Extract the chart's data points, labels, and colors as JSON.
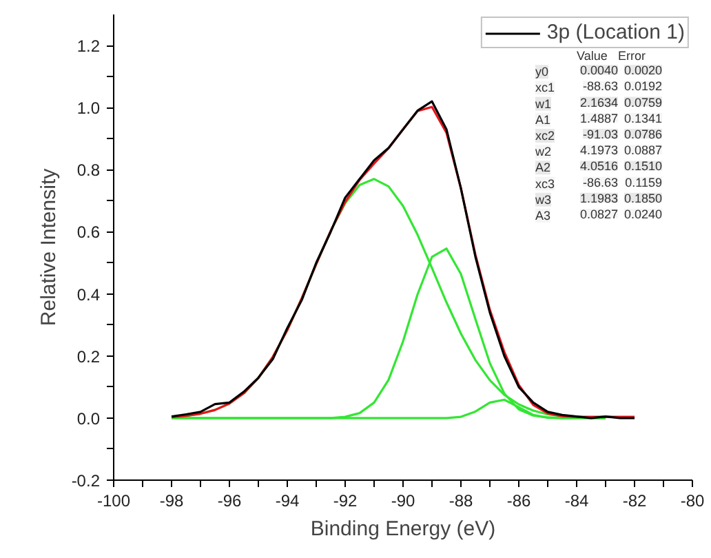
{
  "chart_data": {
    "type": "line",
    "xlabel": "Binding Energy (eV)",
    "ylabel": "Relative Intensity",
    "xlim": [
      -100,
      -80
    ],
    "ylim": [
      -0.2,
      1.3
    ],
    "xticks": [
      -100,
      {
        "value": -99,
        "label": null
      },
      -98,
      {
        "value": -97,
        "label": null
      },
      -96,
      {
        "value": -95,
        "label": null
      },
      -94,
      {
        "value": -93,
        "label": null
      },
      -92,
      {
        "value": -91,
        "label": null
      },
      -90,
      {
        "value": -89,
        "label": null
      },
      -88,
      {
        "value": -87,
        "label": null
      },
      -86,
      {
        "value": -85,
        "label": null
      },
      -84,
      {
        "value": -83,
        "label": null
      },
      -82,
      {
        "value": -81,
        "label": null
      },
      -80
    ],
    "yticks": [
      {
        "value": -0.2,
        "label": "-0.2"
      },
      {
        "value": -0.1,
        "label": null
      },
      {
        "value": 0,
        "label": "0.0"
      },
      {
        "value": 0.1,
        "label": null
      },
      {
        "value": 0.2,
        "label": "0.2"
      },
      {
        "value": 0.3,
        "label": null
      },
      {
        "value": 0.4,
        "label": "0.4"
      },
      {
        "value": 0.5,
        "label": null
      },
      {
        "value": 0.6,
        "label": "0.6"
      },
      {
        "value": 0.7,
        "label": null
      },
      {
        "value": 0.8,
        "label": "0.8"
      },
      {
        "value": 0.9,
        "label": null
      },
      {
        "value": 1.0,
        "label": "1.0"
      },
      {
        "value": 1.1,
        "label": null
      },
      {
        "value": 1.2,
        "label": "1.2"
      }
    ],
    "grid": false,
    "legend": "top right",
    "marker": "none",
    "line_style": "solid",
    "x": [
      -98,
      -97.5,
      -97,
      -96.5,
      -96,
      -95.5,
      -95,
      -94.5,
      -94,
      -93.5,
      -93,
      -92.5,
      -92,
      -91.5,
      -91,
      -90.5,
      -90,
      -89.5,
      -89,
      -88.5,
      -88,
      -87.5,
      -87,
      -86.5,
      -86,
      -85.5,
      -85,
      -84.5,
      -84,
      -83.5,
      -83,
      -82.5,
      -82
    ],
    "series": [
      {
        "name": "3p (Location 1)",
        "color": "#000000",
        "values": [
          0.005,
          0.012,
          0.02,
          0.045,
          0.05,
          0.085,
          0.13,
          0.19,
          0.29,
          0.38,
          0.5,
          0.6,
          0.71,
          0.77,
          0.83,
          0.87,
          0.93,
          0.99,
          1.02,
          0.93,
          0.74,
          0.52,
          0.34,
          0.2,
          0.1,
          0.05,
          0.02,
          0.01,
          0.005,
          0.0,
          0.005,
          0.0,
          0.0
        ]
      },
      {
        "color": "#e8141c",
        "values": [
          0.003,
          0.007,
          0.014,
          0.026,
          0.047,
          0.08,
          0.129,
          0.197,
          0.283,
          0.386,
          0.496,
          0.603,
          0.696,
          0.767,
          0.82,
          0.869,
          0.93,
          0.989,
          1.002,
          0.919,
          0.74,
          0.527,
          0.349,
          0.213,
          0.107,
          0.042,
          0.015,
          0.006,
          0.004,
          0.004,
          0.004,
          0.004,
          0.004
        ]
      },
      {
        "color": "#33e633",
        "x": [
          -98,
          -97.5,
          -97,
          -96.5,
          -96,
          -95.5,
          -95,
          -94.5,
          -94,
          -93.5,
          -93,
          -92.5,
          -92,
          -91.5,
          -91,
          -90.5,
          -90,
          -89.5,
          -89,
          -88.5,
          -88,
          -87.5,
          -87,
          -86.5,
          -86,
          -85.5,
          -85,
          -84.5,
          -84,
          -83.5,
          -83
        ],
        "values": [
          0.003,
          0.007,
          0.014,
          0.026,
          0.047,
          0.08,
          0.129,
          0.197,
          0.283,
          0.386,
          0.496,
          0.603,
          0.692,
          0.751,
          0.77,
          0.746,
          0.683,
          0.591,
          0.483,
          0.373,
          0.272,
          0.187,
          0.122,
          0.075,
          0.044,
          0.024,
          0.012,
          0.006,
          0.003,
          0.0,
          0.0
        ]
      },
      {
        "color": "#33e633",
        "x": [
          -98,
          -97.5,
          -97,
          -96.5,
          -96,
          -95.5,
          -95,
          -94.5,
          -94,
          -93.5,
          -93,
          -92.5,
          -92,
          -91.5,
          -91,
          -90.5,
          -90,
          -89.5,
          -89,
          -88.5,
          -88,
          -87.5,
          -87,
          -86.5,
          -86,
          -85.5,
          -85,
          -84.5,
          -84,
          -83.5,
          -83
        ],
        "values": [
          0.0,
          0.0,
          0.0,
          0.0,
          0.0,
          0.0,
          0.0,
          0.0,
          0.0,
          0.0,
          0.0,
          0.0,
          0.004,
          0.016,
          0.05,
          0.123,
          0.247,
          0.398,
          0.519,
          0.546,
          0.464,
          0.319,
          0.177,
          0.079,
          0.028,
          0.008,
          0.002,
          0.0,
          0.0,
          0.0,
          0.0
        ]
      },
      {
        "color": "#33e633",
        "x": [
          -98,
          -97.5,
          -97,
          -96.5,
          -96,
          -95.5,
          -95,
          -94.5,
          -94,
          -93.5,
          -93,
          -92.5,
          -92,
          -91.5,
          -91,
          -90.5,
          -90,
          -89.5,
          -89,
          -88.5,
          -88,
          -87.5,
          -87,
          -86.5,
          -86,
          -85.5,
          -85,
          -84.5,
          -84,
          -83.5,
          -83
        ],
        "values": [
          0.0,
          0.0,
          0.0,
          0.0,
          0.0,
          0.0,
          0.0,
          0.0,
          0.0,
          0.0,
          0.0,
          0.0,
          0.0,
          0.0,
          0.0,
          0.0,
          0.0,
          0.0,
          0.0,
          0.0,
          0.004,
          0.021,
          0.05,
          0.059,
          0.035,
          0.01,
          0.001,
          0.0,
          0.0,
          0.0,
          0.0
        ]
      }
    ],
    "annotations": [
      "Value",
      "Error",
      "y0",
      "0.0040",
      "0.0020",
      "xc1",
      "-88.63",
      "0.0192",
      "w1",
      "2.1634",
      "0.0759",
      "A1",
      "1.4887",
      "0.1341",
      "xc2",
      "-91.03",
      "0.0786",
      "w2",
      "4.1973",
      "0.0887",
      "A2",
      "4.0516",
      "0.1510",
      "xc3",
      "-86.63",
      "0.1159",
      "w3",
      "1.1983",
      "0.1850",
      "A3",
      "0.0827",
      "0.0240"
    ]
  }
}
